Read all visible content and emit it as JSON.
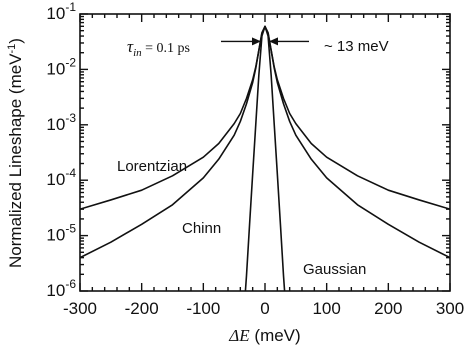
{
  "chart_data": {
    "type": "line",
    "title": "",
    "xlabel": {
      "symbol": "ΔE",
      "unit": "(meV)"
    },
    "ylabel": "Normalized Lineshape (meV",
    "ylabel_sup": "-1",
    "ylabel_close": ")",
    "xlim": [
      -300,
      300
    ],
    "ylim": [
      1e-06,
      0.1
    ],
    "yscale": "log",
    "grid": false,
    "x_ticks": [
      -300,
      -200,
      -100,
      0,
      100,
      200,
      300
    ],
    "x_tick_labels": [
      "-300",
      "-200",
      "-100",
      "0",
      "100",
      "200",
      "300"
    ],
    "y_ticks": [
      1e-06,
      1e-05,
      0.0001,
      0.001,
      0.01,
      0.1
    ],
    "y_tick_labels": [
      {
        "base": "10",
        "exp": "-6"
      },
      {
        "base": "10",
        "exp": "-5"
      },
      {
        "base": "10",
        "exp": "-4"
      },
      {
        "base": "10",
        "exp": "-3"
      },
      {
        "base": "10",
        "exp": "-2"
      },
      {
        "base": "10",
        "exp": "-1"
      }
    ],
    "series": [
      {
        "name": "Lorentzian",
        "x": [
          -300,
          -250,
          -200,
          -150,
          -100,
          -75,
          -50,
          -40,
          -30,
          -20,
          -15,
          -10,
          -5,
          0,
          5,
          10,
          15,
          20,
          30,
          40,
          50,
          75,
          100,
          150,
          200,
          250,
          300
        ],
        "y": [
          3e-05,
          4.4e-05,
          6.6e-05,
          0.00012,
          0.00026,
          0.00046,
          0.00105,
          0.0016,
          0.003,
          0.0065,
          0.011,
          0.022,
          0.044,
          0.058,
          0.044,
          0.022,
          0.011,
          0.0065,
          0.003,
          0.0016,
          0.00105,
          0.00046,
          0.00026,
          0.00012,
          6.6e-05,
          4.4e-05,
          3e-05
        ]
      },
      {
        "name": "Chinn",
        "x": [
          -300,
          -250,
          -200,
          -150,
          -100,
          -75,
          -50,
          -40,
          -30,
          -20,
          -15,
          -10,
          -5,
          0,
          5,
          10,
          15,
          20,
          30,
          40,
          50,
          75,
          100,
          150,
          200,
          250,
          300
        ],
        "y": [
          4e-06,
          7.6e-06,
          1.6e-05,
          3.6e-05,
          0.00011,
          0.00024,
          0.00065,
          0.00115,
          0.0024,
          0.0058,
          0.0105,
          0.022,
          0.046,
          0.06,
          0.046,
          0.022,
          0.0105,
          0.0058,
          0.0024,
          0.00115,
          0.00065,
          0.00024,
          0.00011,
          3.6e-05,
          1.6e-05,
          7.6e-06,
          4e-06
        ]
      },
      {
        "name": "Gaussian",
        "x": [
          -32,
          -30,
          -25,
          -20,
          -15,
          -10,
          -5,
          0,
          5,
          10,
          15,
          20,
          25,
          30,
          32
        ],
        "y": [
          9.2e-07,
          1.9e-06,
          1.6e-05,
          0.00013,
          0.001,
          0.0078,
          0.04,
          0.06,
          0.04,
          0.0078,
          0.001,
          0.00013,
          1.6e-05,
          1.9e-06,
          9.2e-07
        ]
      }
    ],
    "annotations": {
      "tau": {
        "symbol": "τ",
        "sub": "in",
        "text": " = 0.1 ps"
      },
      "fwhm": {
        "text": "~ 13 meV",
        "x_left": -6.5,
        "x_right": 6.5
      }
    }
  }
}
